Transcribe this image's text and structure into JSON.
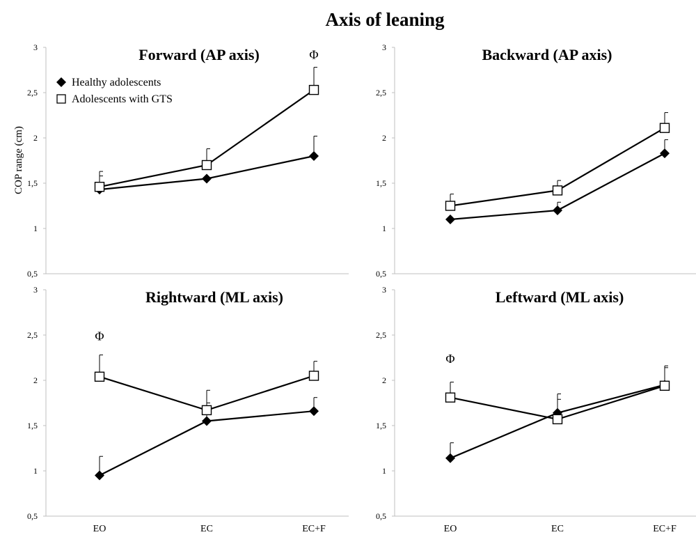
{
  "figure": {
    "title": "Axis of  leaning",
    "ylabel": "COP range  (cm)"
  },
  "legend": {
    "placement": "top-left",
    "entries": [
      {
        "name": "Healthy  adolescents",
        "marker": "diamond"
      },
      {
        "name": "Adolescents  with GTS",
        "marker": "square"
      }
    ]
  },
  "chart_data": [
    {
      "type": "line",
      "title": "Forward (AP axis)",
      "categories": [
        "EO",
        "EC",
        "EC+F"
      ],
      "ylim": [
        0.5,
        3
      ],
      "yticks": [
        "0,5",
        "1",
        "1,5",
        "2",
        "2,5",
        "3"
      ],
      "series": [
        {
          "name": "Healthy  adolescents",
          "values": [
            1.43,
            1.55,
            1.8
          ],
          "err": [
            0.15,
            0.0,
            0.22
          ]
        },
        {
          "name": "Adolescents  with GTS",
          "values": [
            1.46,
            1.7,
            2.53
          ],
          "err": [
            0.17,
            0.18,
            0.25
          ]
        }
      ],
      "annotations": [
        {
          "text": "Φ",
          "category": "EC+F",
          "y": 2.92
        }
      ]
    },
    {
      "type": "line",
      "title": "Backward (AP axis)",
      "categories": [
        "EO",
        "EC",
        "EC+F"
      ],
      "ylim": [
        0.5,
        3
      ],
      "yticks": [
        "0,5",
        "1",
        "1,5",
        "2",
        "2,5",
        "3"
      ],
      "series": [
        {
          "name": "Healthy  adolescents",
          "values": [
            1.1,
            1.2,
            1.83
          ],
          "err": [
            0.0,
            0.09,
            0.15
          ]
        },
        {
          "name": "Adolescents  with GTS",
          "values": [
            1.25,
            1.42,
            2.11
          ],
          "err": [
            0.13,
            0.11,
            0.17
          ]
        }
      ],
      "annotations": []
    },
    {
      "type": "line",
      "title": "Rightward (ML axis)",
      "categories": [
        "EO",
        "EC",
        "EC+F"
      ],
      "ylim": [
        0.5,
        3
      ],
      "yticks": [
        "0,5",
        "1",
        "1,5",
        "2",
        "2,5",
        "3"
      ],
      "series": [
        {
          "name": "Healthy  adolescents",
          "values": [
            0.95,
            1.55,
            1.66
          ],
          "err": [
            0.21,
            0.2,
            0.15
          ]
        },
        {
          "name": "Adolescents  with GTS",
          "values": [
            2.04,
            1.67,
            2.05
          ],
          "err": [
            0.24,
            0.22,
            0.16
          ]
        }
      ],
      "annotations": [
        {
          "text": "Φ",
          "category": "EO",
          "y": 2.49
        }
      ]
    },
    {
      "type": "line",
      "title": "Leftward (ML axis)",
      "categories": [
        "EO",
        "EC",
        "EC+F"
      ],
      "ylim": [
        0.5,
        3
      ],
      "yticks": [
        "0,5",
        "1",
        "1,5",
        "2",
        "2,5",
        "3"
      ],
      "series": [
        {
          "name": "Healthy  adolescents",
          "values": [
            1.14,
            1.64,
            1.95
          ],
          "err": [
            0.17,
            0.21,
            0.21
          ]
        },
        {
          "name": "Adolescents  with GTS",
          "values": [
            1.81,
            1.57,
            1.94
          ],
          "err": [
            0.17,
            0.22,
            0.2
          ]
        }
      ],
      "annotations": [
        {
          "text": "Φ",
          "category": "EO",
          "y": 2.24
        }
      ]
    }
  ]
}
